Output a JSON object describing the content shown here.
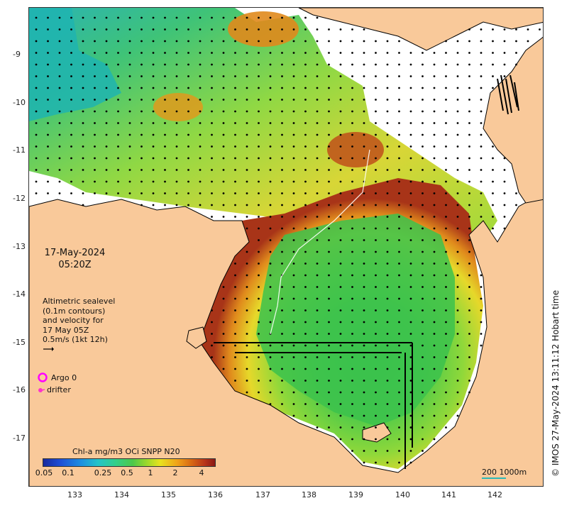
{
  "date_label": {
    "line1": "17-May-2024",
    "line2": "05:20Z"
  },
  "altimetry_note": {
    "line1": "Altimetric sealevel",
    "line2": "(0.1m contours)",
    "line3": "and velocity for",
    "line4": "17 May 05Z",
    "line5": "0.5m/s (1kt 12h)"
  },
  "legend": {
    "argo": "Argo 0",
    "drifter": "drifter"
  },
  "colorbar": {
    "title": "Chl-a mg/m3 OCi SNPP N20",
    "ticks": [
      "0.05",
      "0.1",
      "0.25",
      "0.5",
      "1",
      "2",
      "4"
    ]
  },
  "scale_bar": {
    "label": "200  1000m"
  },
  "credit": "© IMOS 27-May-2024 13:11:12 Hobart time",
  "axes": {
    "x_ticks": [
      "133",
      "134",
      "135",
      "136",
      "137",
      "138",
      "139",
      "140",
      "141",
      "142"
    ],
    "y_ticks": [
      "-9",
      "-10",
      "-11",
      "-12",
      "-13",
      "-14",
      "-15",
      "-16",
      "-17"
    ]
  },
  "colors": {
    "land": "#f9c99a",
    "coast": "#000000",
    "argo": "#ff00ff",
    "drifter": "#ff33cc",
    "scale": "#2ab8b8"
  }
}
